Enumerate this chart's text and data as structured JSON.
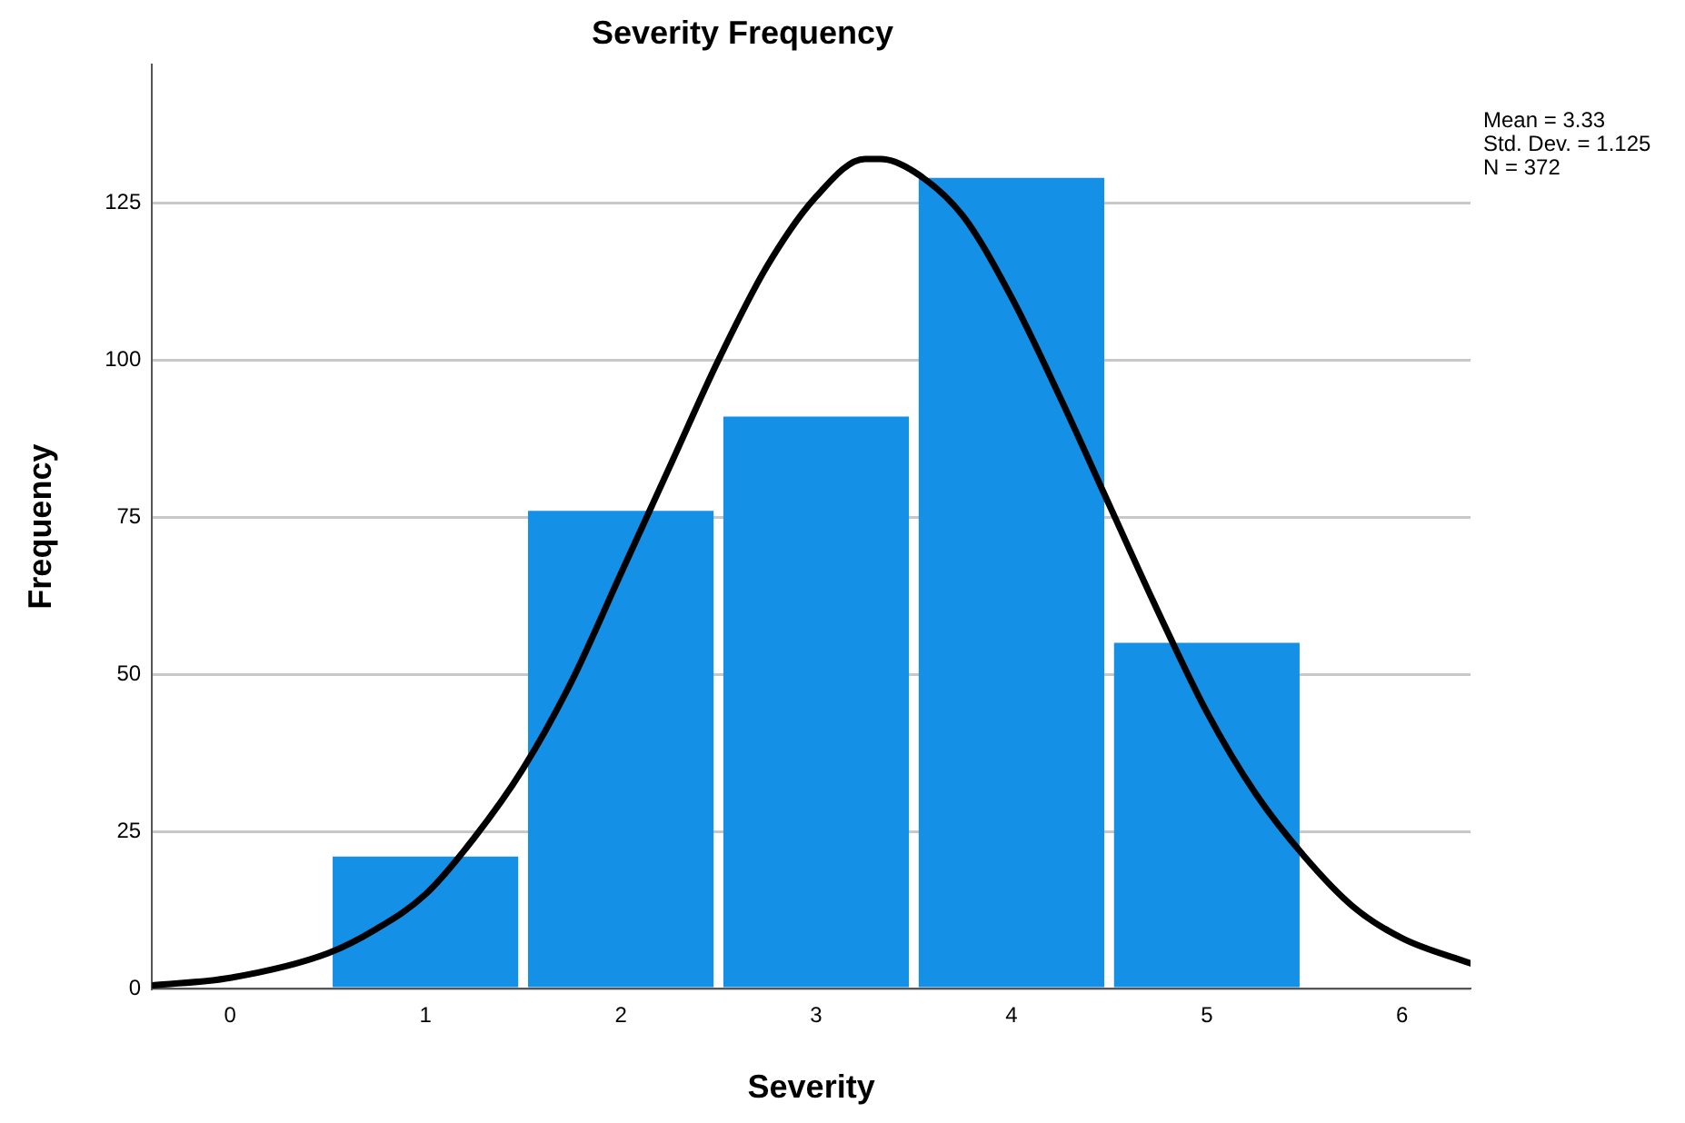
{
  "chart_data": {
    "type": "histogram",
    "title": "Severity Frequency",
    "xlabel": "Severity",
    "ylabel": "Frequency",
    "bins": [
      0.5,
      1.5,
      2.5,
      3.5,
      4.5,
      5.5
    ],
    "values": [
      21,
      76,
      91,
      129,
      55
    ],
    "color": "#1490e6",
    "series": [
      {
        "type": "line",
        "color": "#000000",
        "x": [
          -0.4,
          0,
          0.5,
          0.75,
          1,
          1.25,
          1.5,
          1.75,
          2,
          2.25,
          2.5,
          2.75,
          3,
          3.25,
          3.33,
          3.5,
          3.75,
          4,
          4.25,
          4.5,
          4.75,
          5,
          5.25,
          5.5,
          5.75,
          6,
          6.35
        ],
        "values": [
          0.5,
          1.7,
          5.6,
          9.5,
          15,
          24,
          35,
          49,
          66,
          83,
          100,
          115,
          126,
          132,
          132,
          130,
          123,
          110,
          94,
          77,
          60,
          44,
          31,
          21,
          13,
          8,
          4
        ]
      }
    ],
    "marker": "none",
    "line_style": "solid",
    "xlim": [
      -0.4,
      6.35
    ],
    "xticks": [
      0,
      1,
      2,
      3,
      4,
      5,
      6
    ],
    "ylim": [
      0,
      147
    ],
    "yticks": [
      0,
      25,
      50,
      75,
      100,
      125
    ],
    "grid": "y",
    "legend": false,
    "annotations": [
      "Mean = 3.33",
      "Std. Dev. = 1.125",
      "N = 372"
    ]
  }
}
